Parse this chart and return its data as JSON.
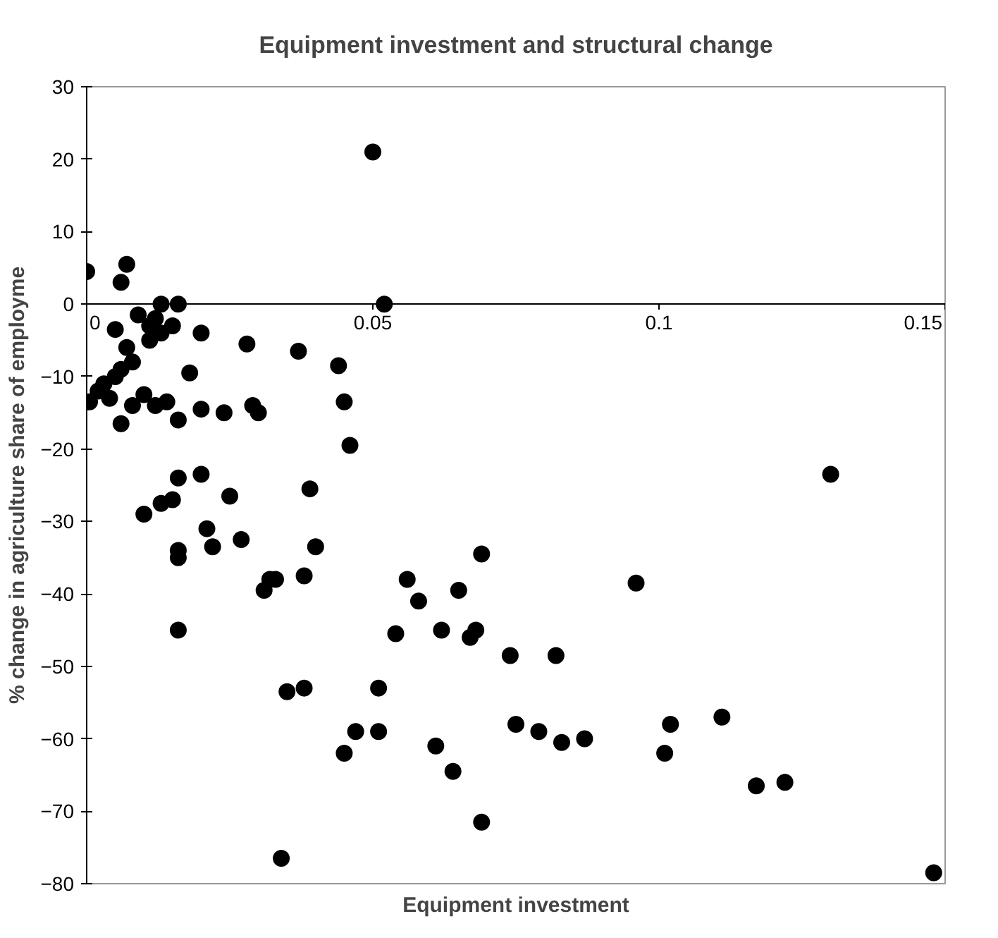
{
  "chart_data": {
    "type": "scatter",
    "title": "Equipment investment and structural change",
    "xlabel": "Equipment investment",
    "ylabel": "% change in agriculture share of employme",
    "xlim": [
      0,
      0.15
    ],
    "xticks": [
      0,
      0.05,
      0.1,
      0.15
    ],
    "ylim": [
      -80,
      30
    ],
    "yticks": [
      -80,
      -70,
      -60,
      -50,
      -40,
      -30,
      -20,
      -10,
      0,
      10,
      20,
      30
    ],
    "grid": false,
    "marker": "circle",
    "series": [
      {
        "color": "#000000",
        "x": [
          0.0,
          0.007,
          0.006,
          0.0005,
          0.002,
          0.003,
          0.004,
          0.005,
          0.005,
          0.006,
          0.006,
          0.007,
          0.008,
          0.008,
          0.009,
          0.01,
          0.011,
          0.011,
          0.012,
          0.012,
          0.013,
          0.013,
          0.014,
          0.015,
          0.016,
          0.016,
          0.01,
          0.013,
          0.015,
          0.016,
          0.016,
          0.016,
          0.016,
          0.018,
          0.02,
          0.02,
          0.02,
          0.021,
          0.022,
          0.024,
          0.025,
          0.027,
          0.028,
          0.029,
          0.03,
          0.031,
          0.032,
          0.033,
          0.034,
          0.035,
          0.037,
          0.038,
          0.038,
          0.039,
          0.04,
          0.044,
          0.045,
          0.046,
          0.045,
          0.047,
          0.05,
          0.052,
          0.051,
          0.051,
          0.054,
          0.056,
          0.058,
          0.061,
          0.062,
          0.064,
          0.065,
          0.067,
          0.068,
          0.069,
          0.069,
          0.074,
          0.075,
          0.079,
          0.082,
          0.083,
          0.087,
          0.096,
          0.101,
          0.102,
          0.111,
          0.117,
          0.122,
          0.13,
          0.148
        ],
        "values": [
          4.5,
          5.5,
          3,
          -13.5,
          -12,
          -11,
          -13,
          -10,
          -3.5,
          -9,
          -16.5,
          -6,
          -8,
          -14,
          -1.5,
          -12.5,
          -3,
          -5,
          -2,
          -14,
          0,
          -4,
          -13.5,
          -3,
          0,
          -16,
          -29,
          -27.5,
          -27,
          -24,
          -34,
          -35,
          -45,
          -9.5,
          -4,
          -14.5,
          -23.5,
          -31,
          -33.5,
          -15,
          -26.5,
          -32.5,
          -5.5,
          -14,
          -15,
          -39.5,
          -38,
          -38,
          -76.5,
          -53.5,
          -6.5,
          -37.5,
          -53,
          -25.5,
          -33.5,
          -8.5,
          -13.5,
          -19.5,
          -62,
          -59,
          21,
          0,
          -53,
          -59,
          -45.5,
          -38,
          -41,
          -61,
          -45,
          -64.5,
          -39.5,
          -46,
          -45,
          -34.5,
          -71.5,
          -48.5,
          -58,
          -59,
          -48.5,
          -60.5,
          -60,
          -38.5,
          -62,
          -58,
          -57,
          -66.5,
          -66,
          -23.5,
          -78.5
        ]
      }
    ]
  }
}
